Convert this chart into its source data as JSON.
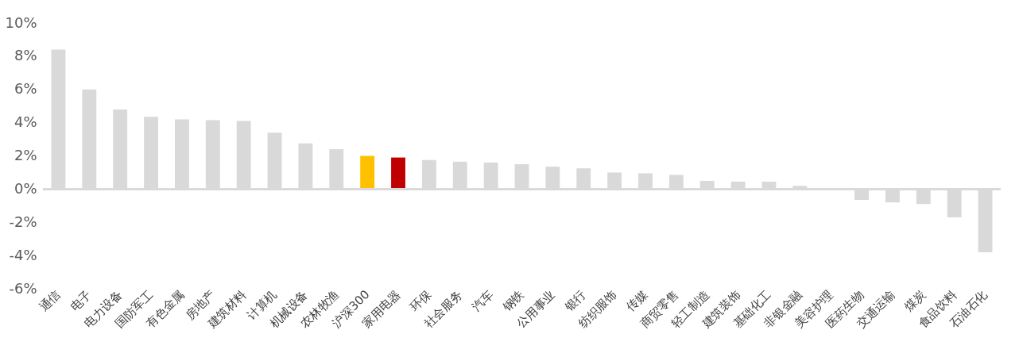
{
  "chart_data": {
    "type": "bar",
    "categories": [
      "通信",
      "电子",
      "电力设备",
      "国防军工",
      "有色金属",
      "房地产",
      "建筑材料",
      "计算机",
      "机械设备",
      "农林牧渔",
      "沪深300",
      "家用电器",
      "环保",
      "社会服务",
      "汽车",
      "钢铁",
      "公用事业",
      "银行",
      "纺织服饰",
      "传媒",
      "商贸零售",
      "轻工制造",
      "建筑装饰",
      "基础化工",
      "非银金融",
      "美容护理",
      "医药生物",
      "交通运输",
      "煤炭",
      "食品饮料",
      "石油石化"
    ],
    "values": [
      8.4,
      6.0,
      4.8,
      4.35,
      4.2,
      4.15,
      4.1,
      3.4,
      2.75,
      2.4,
      2.0,
      1.9,
      1.75,
      1.65,
      1.6,
      1.5,
      1.35,
      1.25,
      1.0,
      0.95,
      0.85,
      0.5,
      0.45,
      0.45,
      0.2,
      0.0,
      -0.65,
      -0.8,
      -0.9,
      -1.7,
      -3.8
    ],
    "colors": [
      "#d9d9d9",
      "#d9d9d9",
      "#d9d9d9",
      "#d9d9d9",
      "#d9d9d9",
      "#d9d9d9",
      "#d9d9d9",
      "#d9d9d9",
      "#d9d9d9",
      "#d9d9d9",
      "#ffc000",
      "#c00000",
      "#d9d9d9",
      "#d9d9d9",
      "#d9d9d9",
      "#d9d9d9",
      "#d9d9d9",
      "#d9d9d9",
      "#d9d9d9",
      "#d9d9d9",
      "#d9d9d9",
      "#d9d9d9",
      "#d9d9d9",
      "#d9d9d9",
      "#d9d9d9",
      "#d9d9d9",
      "#d9d9d9",
      "#d9d9d9",
      "#d9d9d9",
      "#d9d9d9",
      "#d9d9d9"
    ],
    "ylim": [
      -6,
      10
    ],
    "yticks": [
      {
        "value": -6,
        "label": "-6%"
      },
      {
        "value": -4,
        "label": "-4%"
      },
      {
        "value": -2,
        "label": "-2%"
      },
      {
        "value": 0,
        "label": "0%"
      },
      {
        "value": 2,
        "label": "2%"
      },
      {
        "value": 4,
        "label": "4%"
      },
      {
        "value": 6,
        "label": "6%"
      },
      {
        "value": 8,
        "label": "8%"
      },
      {
        "value": 10,
        "label": "10%"
      }
    ],
    "ref_lines": [
      {
        "axis": "y",
        "value": 0,
        "color": "#d9d9d9"
      }
    ]
  }
}
